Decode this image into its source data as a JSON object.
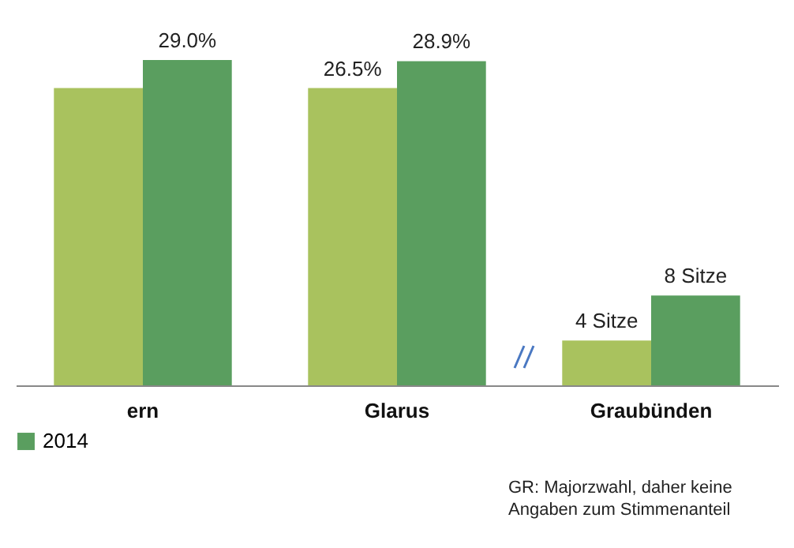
{
  "chart_data": {
    "type": "bar",
    "categories": [
      "ern",
      "Glarus",
      "Graubünden"
    ],
    "series": [
      {
        "color": "#a9c25e",
        "values": [
          26.5,
          26.5,
          4
        ],
        "value_labels": [
          null,
          "26.5%",
          "4 Sitze"
        ]
      },
      {
        "name": "2014",
        "color": "#5a9e5f",
        "values": [
          29.0,
          28.9,
          8
        ],
        "value_labels": [
          "29.0%",
          "28.9%",
          "8 Sitze"
        ]
      }
    ],
    "legend": "bottom",
    "annotations": [
      "GR: Majorzwahl, daher keine Angaben zum Stimmenanteil"
    ]
  }
}
